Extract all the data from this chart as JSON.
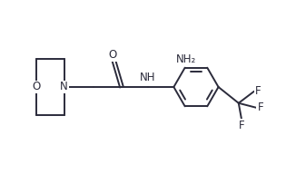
{
  "background": "#ffffff",
  "line_color": "#2b2b3b",
  "line_width": 1.4,
  "font_size": 8.5,
  "fig_width": 3.26,
  "fig_height": 1.92,
  "dpi": 100,
  "xlim": [
    0,
    9.5
  ],
  "ylim": [
    0,
    5.5
  ]
}
